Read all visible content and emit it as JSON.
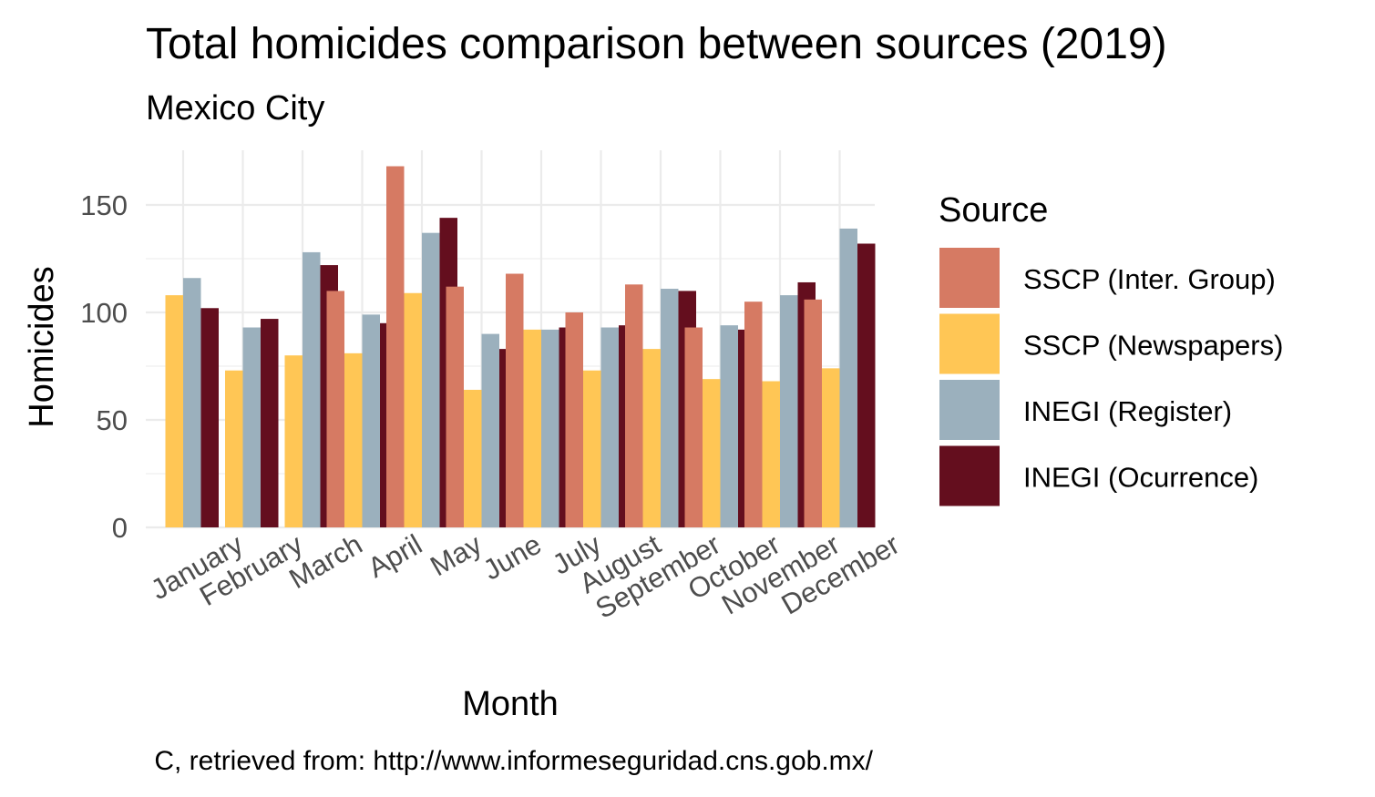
{
  "chart_data": {
    "type": "bar",
    "title": "Total homicides comparison between sources (2019)",
    "subtitle": "Mexico City",
    "xlabel": "Month",
    "ylabel": "Homicides",
    "caption": "C, retrieved from: http://www.informeseguridad.cns.gob.mx/",
    "ylim": [
      0,
      165
    ],
    "yticks": [
      0,
      50,
      100,
      150
    ],
    "grid": true,
    "legend_position": "right",
    "legend_title": "Source",
    "categories": [
      "January",
      "February",
      "March",
      "April",
      "May",
      "June",
      "July",
      "August",
      "September",
      "October",
      "November",
      "December"
    ],
    "series": [
      {
        "name": "SSCP (Inter. Group)",
        "color": "#D67A63",
        "values": [
          null,
          null,
          null,
          110,
          168,
          112,
          118,
          100,
          113,
          93,
          105,
          106
        ]
      },
      {
        "name": "SSCP (Newspapers)",
        "color": "#FFC655",
        "values": [
          108,
          73,
          80,
          81,
          109,
          64,
          92,
          73,
          83,
          69,
          68,
          74
        ]
      },
      {
        "name": "INEGI (Register)",
        "color": "#9BB0BD",
        "values": [
          116,
          93,
          128,
          99,
          137,
          90,
          92,
          93,
          111,
          94,
          108,
          139
        ]
      },
      {
        "name": "INEGI (Ocurrence)",
        "color": "#640E1E",
        "values": [
          102,
          97,
          122,
          95,
          144,
          83,
          93,
          94,
          110,
          92,
          114,
          132
        ]
      }
    ]
  }
}
